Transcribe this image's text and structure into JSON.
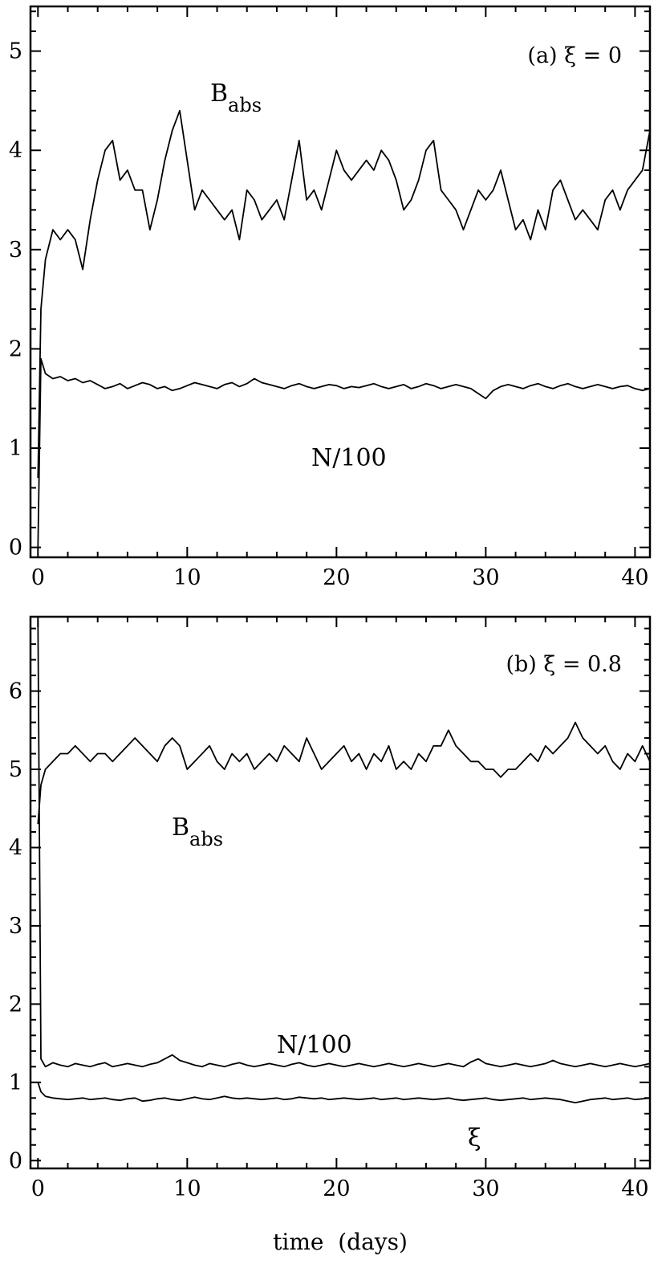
{
  "chart_data": [
    {
      "type": "line",
      "panel_label": "(a) ξ = 0",
      "xlim": [
        -0.5,
        41
      ],
      "ylim": [
        -0.1,
        5.45
      ],
      "x_ticks": [
        0,
        10,
        20,
        30,
        40
      ],
      "y_ticks": [
        0,
        1,
        2,
        3,
        4,
        5
      ],
      "grid": false,
      "series": [
        {
          "name": "B",
          "name_sub": "abs",
          "x": [
            0,
            0.2,
            0.5,
            1,
            1.5,
            2,
            2.5,
            3,
            3.5,
            4,
            4.5,
            5,
            5.5,
            6,
            6.5,
            7,
            7.5,
            8,
            8.5,
            9,
            9.5,
            10,
            10.5,
            11,
            11.5,
            12,
            12.5,
            13,
            13.5,
            14,
            14.5,
            15,
            15.5,
            16,
            16.5,
            17,
            17.5,
            18,
            18.5,
            19,
            19.5,
            20,
            20.5,
            21,
            21.5,
            22,
            22.5,
            23,
            23.5,
            24,
            24.5,
            25,
            25.5,
            26,
            26.5,
            27,
            27.5,
            28,
            28.5,
            29,
            29.5,
            30,
            30.5,
            31,
            31.5,
            32,
            32.5,
            33,
            33.5,
            34,
            34.5,
            35,
            35.5,
            36,
            36.5,
            37,
            37.5,
            38,
            38.5,
            39,
            39.5,
            40,
            40.5,
            41
          ],
          "values": [
            0.7,
            2.4,
            2.9,
            3.2,
            3.1,
            3.2,
            3.1,
            2.8,
            3.3,
            3.7,
            4.0,
            4.1,
            3.7,
            3.8,
            3.6,
            3.6,
            3.2,
            3.5,
            3.9,
            4.2,
            4.4,
            3.9,
            3.4,
            3.6,
            3.5,
            3.4,
            3.3,
            3.4,
            3.1,
            3.6,
            3.5,
            3.3,
            3.4,
            3.5,
            3.3,
            3.7,
            4.1,
            3.5,
            3.6,
            3.4,
            3.7,
            4.0,
            3.8,
            3.7,
            3.8,
            3.9,
            3.8,
            4.0,
            3.9,
            3.7,
            3.4,
            3.5,
            3.7,
            4.0,
            4.1,
            3.6,
            3.5,
            3.4,
            3.2,
            3.4,
            3.6,
            3.5,
            3.6,
            3.8,
            3.5,
            3.2,
            3.3,
            3.1,
            3.4,
            3.2,
            3.6,
            3.7,
            3.5,
            3.3,
            3.4,
            3.3,
            3.2,
            3.5,
            3.6,
            3.4,
            3.6,
            3.7,
            3.8,
            4.2
          ]
        },
        {
          "name": "N/100",
          "x": [
            0,
            0.2,
            0.5,
            1,
            1.5,
            2,
            2.5,
            3,
            3.5,
            4,
            4.5,
            5,
            5.5,
            6,
            6.5,
            7,
            7.5,
            8,
            8.5,
            9,
            9.5,
            10,
            10.5,
            11,
            11.5,
            12,
            12.5,
            13,
            13.5,
            14,
            14.5,
            15,
            15.5,
            16,
            16.5,
            17,
            17.5,
            18,
            18.5,
            19,
            19.5,
            20,
            20.5,
            21,
            21.5,
            22,
            22.5,
            23,
            23.5,
            24,
            24.5,
            25,
            25.5,
            26,
            26.5,
            27,
            27.5,
            28,
            28.5,
            29,
            29.5,
            30,
            30.5,
            31,
            31.5,
            32,
            32.5,
            33,
            33.5,
            34,
            34.5,
            35,
            35.5,
            36,
            36.5,
            37,
            37.5,
            38,
            38.5,
            39,
            39.5,
            40,
            40.5,
            41
          ],
          "values": [
            0.0,
            1.9,
            1.75,
            1.7,
            1.72,
            1.68,
            1.7,
            1.66,
            1.68,
            1.64,
            1.6,
            1.62,
            1.65,
            1.6,
            1.63,
            1.66,
            1.64,
            1.6,
            1.62,
            1.58,
            1.6,
            1.63,
            1.66,
            1.64,
            1.62,
            1.6,
            1.64,
            1.66,
            1.62,
            1.65,
            1.7,
            1.66,
            1.64,
            1.62,
            1.6,
            1.63,
            1.65,
            1.62,
            1.6,
            1.62,
            1.64,
            1.63,
            1.6,
            1.62,
            1.61,
            1.63,
            1.65,
            1.62,
            1.6,
            1.62,
            1.64,
            1.6,
            1.62,
            1.65,
            1.63,
            1.6,
            1.62,
            1.64,
            1.62,
            1.6,
            1.55,
            1.5,
            1.58,
            1.62,
            1.64,
            1.62,
            1.6,
            1.63,
            1.65,
            1.62,
            1.6,
            1.63,
            1.65,
            1.62,
            1.6,
            1.62,
            1.64,
            1.62,
            1.6,
            1.62,
            1.63,
            1.6,
            1.58,
            1.6
          ]
        }
      ]
    },
    {
      "type": "line",
      "panel_label": "(b) ξ = 0.8",
      "xlabel": "time  (days)",
      "xlim": [
        -0.5,
        41
      ],
      "ylim": [
        -0.1,
        6.95
      ],
      "x_ticks": [
        0,
        10,
        20,
        30,
        40
      ],
      "y_ticks": [
        0,
        1,
        2,
        3,
        4,
        5,
        6
      ],
      "grid": false,
      "series": [
        {
          "name": "B",
          "name_sub": "abs",
          "x": [
            0,
            0.2,
            0.5,
            1,
            1.5,
            2,
            2.5,
            3,
            3.5,
            4,
            4.5,
            5,
            5.5,
            6,
            6.5,
            7,
            7.5,
            8,
            8.5,
            9,
            9.5,
            10,
            10.5,
            11,
            11.5,
            12,
            12.5,
            13,
            13.5,
            14,
            14.5,
            15,
            15.5,
            16,
            16.5,
            17,
            17.5,
            18,
            18.5,
            19,
            19.5,
            20,
            20.5,
            21,
            21.5,
            22,
            22.5,
            23,
            23.5,
            24,
            24.5,
            25,
            25.5,
            26,
            26.5,
            27,
            27.5,
            28,
            28.5,
            29,
            29.5,
            30,
            30.5,
            31,
            31.5,
            32,
            32.5,
            33,
            33.5,
            34,
            34.5,
            35,
            35.5,
            36,
            36.5,
            37,
            37.5,
            38,
            38.5,
            39,
            39.5,
            40,
            40.5,
            41
          ],
          "values": [
            4.3,
            4.8,
            5.0,
            5.1,
            5.2,
            5.2,
            5.3,
            5.2,
            5.1,
            5.2,
            5.2,
            5.1,
            5.2,
            5.3,
            5.4,
            5.3,
            5.2,
            5.1,
            5.3,
            5.4,
            5.3,
            5.0,
            5.1,
            5.2,
            5.3,
            5.1,
            5.0,
            5.2,
            5.1,
            5.2,
            5.0,
            5.1,
            5.2,
            5.1,
            5.3,
            5.2,
            5.1,
            5.4,
            5.2,
            5.0,
            5.1,
            5.2,
            5.3,
            5.1,
            5.2,
            5.0,
            5.2,
            5.1,
            5.3,
            5.0,
            5.1,
            5.0,
            5.2,
            5.1,
            5.3,
            5.3,
            5.5,
            5.3,
            5.2,
            5.1,
            5.1,
            5.0,
            5.0,
            4.9,
            5.0,
            5.0,
            5.1,
            5.2,
            5.1,
            5.3,
            5.2,
            5.3,
            5.4,
            5.6,
            5.4,
            5.3,
            5.2,
            5.3,
            5.1,
            5.0,
            5.2,
            5.1,
            5.3,
            5.1
          ]
        },
        {
          "name": "N/100",
          "x": [
            0,
            0.2,
            0.5,
            1,
            1.5,
            2,
            2.5,
            3,
            3.5,
            4,
            4.5,
            5,
            5.5,
            6,
            6.5,
            7,
            7.5,
            8,
            8.5,
            9,
            9.5,
            10,
            10.5,
            11,
            11.5,
            12,
            12.5,
            13,
            13.5,
            14,
            14.5,
            15,
            15.5,
            16,
            16.5,
            17,
            17.5,
            18,
            18.5,
            19,
            19.5,
            20,
            20.5,
            21,
            21.5,
            22,
            22.5,
            23,
            23.5,
            24,
            24.5,
            25,
            25.5,
            26,
            26.5,
            27,
            27.5,
            28,
            28.5,
            29,
            29.5,
            30,
            30.5,
            31,
            31.5,
            32,
            32.5,
            33,
            33.5,
            34,
            34.5,
            35,
            35.5,
            36,
            36.5,
            37,
            37.5,
            38,
            38.5,
            39,
            39.5,
            40,
            40.5,
            41
          ],
          "values": [
            6.9,
            1.3,
            1.2,
            1.25,
            1.22,
            1.2,
            1.24,
            1.22,
            1.2,
            1.23,
            1.25,
            1.2,
            1.22,
            1.24,
            1.22,
            1.2,
            1.23,
            1.25,
            1.3,
            1.35,
            1.28,
            1.25,
            1.22,
            1.2,
            1.24,
            1.22,
            1.2,
            1.23,
            1.25,
            1.22,
            1.2,
            1.22,
            1.24,
            1.22,
            1.2,
            1.23,
            1.25,
            1.22,
            1.2,
            1.22,
            1.24,
            1.22,
            1.2,
            1.22,
            1.24,
            1.22,
            1.2,
            1.22,
            1.24,
            1.22,
            1.2,
            1.22,
            1.24,
            1.22,
            1.2,
            1.22,
            1.24,
            1.22,
            1.2,
            1.26,
            1.3,
            1.24,
            1.22,
            1.2,
            1.22,
            1.24,
            1.22,
            1.2,
            1.22,
            1.24,
            1.28,
            1.24,
            1.22,
            1.2,
            1.22,
            1.24,
            1.22,
            1.2,
            1.22,
            1.24,
            1.22,
            1.2,
            1.22,
            1.24
          ]
        },
        {
          "name": "ξ",
          "x": [
            0,
            0.2,
            0.5,
            1,
            1.5,
            2,
            2.5,
            3,
            3.5,
            4,
            4.5,
            5,
            5.5,
            6,
            6.5,
            7,
            7.5,
            8,
            8.5,
            9,
            9.5,
            10,
            10.5,
            11,
            11.5,
            12,
            12.5,
            13,
            13.5,
            14,
            14.5,
            15,
            15.5,
            16,
            16.5,
            17,
            17.5,
            18,
            18.5,
            19,
            19.5,
            20,
            20.5,
            21,
            21.5,
            22,
            22.5,
            23,
            23.5,
            24,
            24.5,
            25,
            25.5,
            26,
            26.5,
            27,
            27.5,
            28,
            28.5,
            29,
            29.5,
            30,
            30.5,
            31,
            31.5,
            32,
            32.5,
            33,
            33.5,
            34,
            34.5,
            35,
            35.5,
            36,
            36.5,
            37,
            37.5,
            38,
            38.5,
            39,
            39.5,
            40,
            40.5,
            41
          ],
          "values": [
            1.0,
            0.88,
            0.82,
            0.8,
            0.79,
            0.78,
            0.79,
            0.8,
            0.78,
            0.79,
            0.8,
            0.78,
            0.77,
            0.79,
            0.8,
            0.76,
            0.77,
            0.79,
            0.8,
            0.78,
            0.77,
            0.79,
            0.81,
            0.79,
            0.78,
            0.8,
            0.82,
            0.8,
            0.79,
            0.8,
            0.79,
            0.78,
            0.79,
            0.8,
            0.78,
            0.79,
            0.81,
            0.8,
            0.79,
            0.8,
            0.78,
            0.79,
            0.8,
            0.79,
            0.78,
            0.79,
            0.8,
            0.78,
            0.79,
            0.8,
            0.78,
            0.79,
            0.8,
            0.79,
            0.78,
            0.79,
            0.8,
            0.78,
            0.77,
            0.78,
            0.79,
            0.8,
            0.78,
            0.77,
            0.78,
            0.79,
            0.8,
            0.78,
            0.79,
            0.8,
            0.79,
            0.78,
            0.76,
            0.74,
            0.76,
            0.78,
            0.79,
            0.8,
            0.78,
            0.79,
            0.8,
            0.78,
            0.79,
            0.8
          ]
        }
      ]
    }
  ]
}
